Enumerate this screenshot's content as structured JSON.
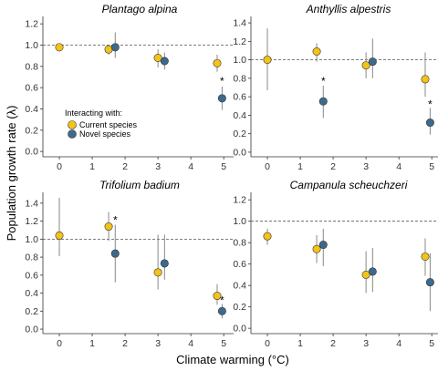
{
  "figure": {
    "xlabel": "Climate warming (°C)",
    "ylabel": "Population growth rate (λ)"
  },
  "legend": {
    "title": "Interacting with:",
    "entries": [
      {
        "name": "Current species",
        "color": "#F2C318"
      },
      {
        "name": "Novel species",
        "color": "#3D6A8C"
      }
    ]
  },
  "chart_data": [
    {
      "type": "scatter",
      "title": "Plantago alpina",
      "xlim": [
        -0.5,
        5.3
      ],
      "ylim": [
        -0.05,
        1.27
      ],
      "yticks": [
        "0.0",
        "0.2",
        "0.4",
        "0.6",
        "0.8",
        "1.0",
        "1.2"
      ],
      "xticks": [
        "0",
        "1",
        "2",
        "3",
        "4",
        "5"
      ],
      "reference_line": 1.0,
      "series": [
        {
          "name": "Current species",
          "points": [
            {
              "x": 0,
              "y": 0.98,
              "lo": 0.95,
              "hi": 1.01
            },
            {
              "x": 1.5,
              "y": 0.96,
              "lo": 0.91,
              "hi": 1.0
            },
            {
              "x": 3.0,
              "y": 0.88,
              "lo": 0.79,
              "hi": 0.96
            },
            {
              "x": 4.8,
              "y": 0.83,
              "lo": 0.75,
              "hi": 0.91
            }
          ]
        },
        {
          "name": "Novel species",
          "points": [
            {
              "x": 1.7,
              "y": 0.98,
              "lo": 0.88,
              "hi": 1.12
            },
            {
              "x": 3.2,
              "y": 0.85,
              "lo": 0.77,
              "hi": 0.93
            },
            {
              "x": 4.95,
              "y": 0.5,
              "lo": 0.39,
              "hi": 0.61
            }
          ]
        }
      ],
      "annotations": [
        {
          "text": "*",
          "x": 4.95,
          "y": 0.66
        }
      ]
    },
    {
      "type": "scatter",
      "title": "Anthyllis alpestris",
      "xlim": [
        -0.5,
        5.3
      ],
      "ylim": [
        -0.05,
        1.47
      ],
      "yticks": [
        "0.0",
        "0.2",
        "0.4",
        "0.6",
        "0.8",
        "1.0",
        "1.2",
        "1.4"
      ],
      "xticks": [
        "0",
        "1",
        "2",
        "3",
        "4",
        "5"
      ],
      "reference_line": 1.0,
      "series": [
        {
          "name": "Current species",
          "points": [
            {
              "x": 0,
              "y": 1.0,
              "lo": 0.67,
              "hi": 1.34
            },
            {
              "x": 1.5,
              "y": 1.09,
              "lo": 0.98,
              "hi": 1.18
            },
            {
              "x": 3.0,
              "y": 0.94,
              "lo": 0.8,
              "hi": 1.08
            },
            {
              "x": 4.8,
              "y": 0.79,
              "lo": 0.6,
              "hi": 1.08
            }
          ]
        },
        {
          "name": "Novel species",
          "points": [
            {
              "x": 1.7,
              "y": 0.55,
              "lo": 0.37,
              "hi": 0.72
            },
            {
              "x": 3.2,
              "y": 0.98,
              "lo": 0.8,
              "hi": 1.23
            },
            {
              "x": 4.95,
              "y": 0.32,
              "lo": 0.19,
              "hi": 0.48
            }
          ]
        }
      ],
      "annotations": [
        {
          "text": "*",
          "x": 1.7,
          "y": 0.77
        },
        {
          "text": "*",
          "x": 4.95,
          "y": 0.52
        }
      ]
    },
    {
      "type": "scatter",
      "title": "Trifolium badium",
      "xlim": [
        -0.5,
        5.3
      ],
      "ylim": [
        -0.05,
        1.52
      ],
      "yticks": [
        "0.0",
        "0.2",
        "0.4",
        "0.6",
        "0.8",
        "1.0",
        "1.2",
        "1.4"
      ],
      "xticks": [
        "0",
        "1",
        "2",
        "3",
        "4",
        "5"
      ],
      "reference_line": 1.0,
      "series": [
        {
          "name": "Current species",
          "points": [
            {
              "x": 0,
              "y": 1.04,
              "lo": 0.81,
              "hi": 1.46
            },
            {
              "x": 1.5,
              "y": 1.14,
              "lo": 0.98,
              "hi": 1.3
            },
            {
              "x": 3.0,
              "y": 0.63,
              "lo": 0.44,
              "hi": 1.05
            },
            {
              "x": 4.8,
              "y": 0.37,
              "lo": 0.27,
              "hi": 0.5
            }
          ]
        },
        {
          "name": "Novel species",
          "points": [
            {
              "x": 1.7,
              "y": 0.84,
              "lo": 0.52,
              "hi": 1.16
            },
            {
              "x": 3.2,
              "y": 0.73,
              "lo": 0.55,
              "hi": 1.05
            },
            {
              "x": 4.95,
              "y": 0.2,
              "lo": 0.12,
              "hi": 0.28
            }
          ]
        }
      ],
      "annotations": [
        {
          "text": "*",
          "x": 1.7,
          "y": 1.21
        },
        {
          "text": "*",
          "x": 4.95,
          "y": 0.32
        }
      ]
    },
    {
      "type": "scatter",
      "title": "Campanula scheuchzeri",
      "xlim": [
        -0.5,
        5.3
      ],
      "ylim": [
        -0.05,
        1.27
      ],
      "yticks": [
        "0.0",
        "0.2",
        "0.4",
        "0.6",
        "0.8",
        "1.0",
        "1.2"
      ],
      "xticks": [
        "0",
        "1",
        "2",
        "3",
        "4",
        "5"
      ],
      "reference_line": 1.0,
      "series": [
        {
          "name": "Current species",
          "points": [
            {
              "x": 0,
              "y": 0.86,
              "lo": 0.78,
              "hi": 0.93
            },
            {
              "x": 1.5,
              "y": 0.74,
              "lo": 0.61,
              "hi": 0.87
            },
            {
              "x": 3.0,
              "y": 0.5,
              "lo": 0.33,
              "hi": 0.72
            },
            {
              "x": 4.8,
              "y": 0.67,
              "lo": 0.49,
              "hi": 0.84
            }
          ]
        },
        {
          "name": "Novel species",
          "points": [
            {
              "x": 1.7,
              "y": 0.78,
              "lo": 0.58,
              "hi": 0.93
            },
            {
              "x": 3.2,
              "y": 0.53,
              "lo": 0.34,
              "hi": 0.75
            },
            {
              "x": 4.95,
              "y": 0.43,
              "lo": 0.16,
              "hi": 0.7
            }
          ]
        }
      ],
      "annotations": []
    }
  ]
}
